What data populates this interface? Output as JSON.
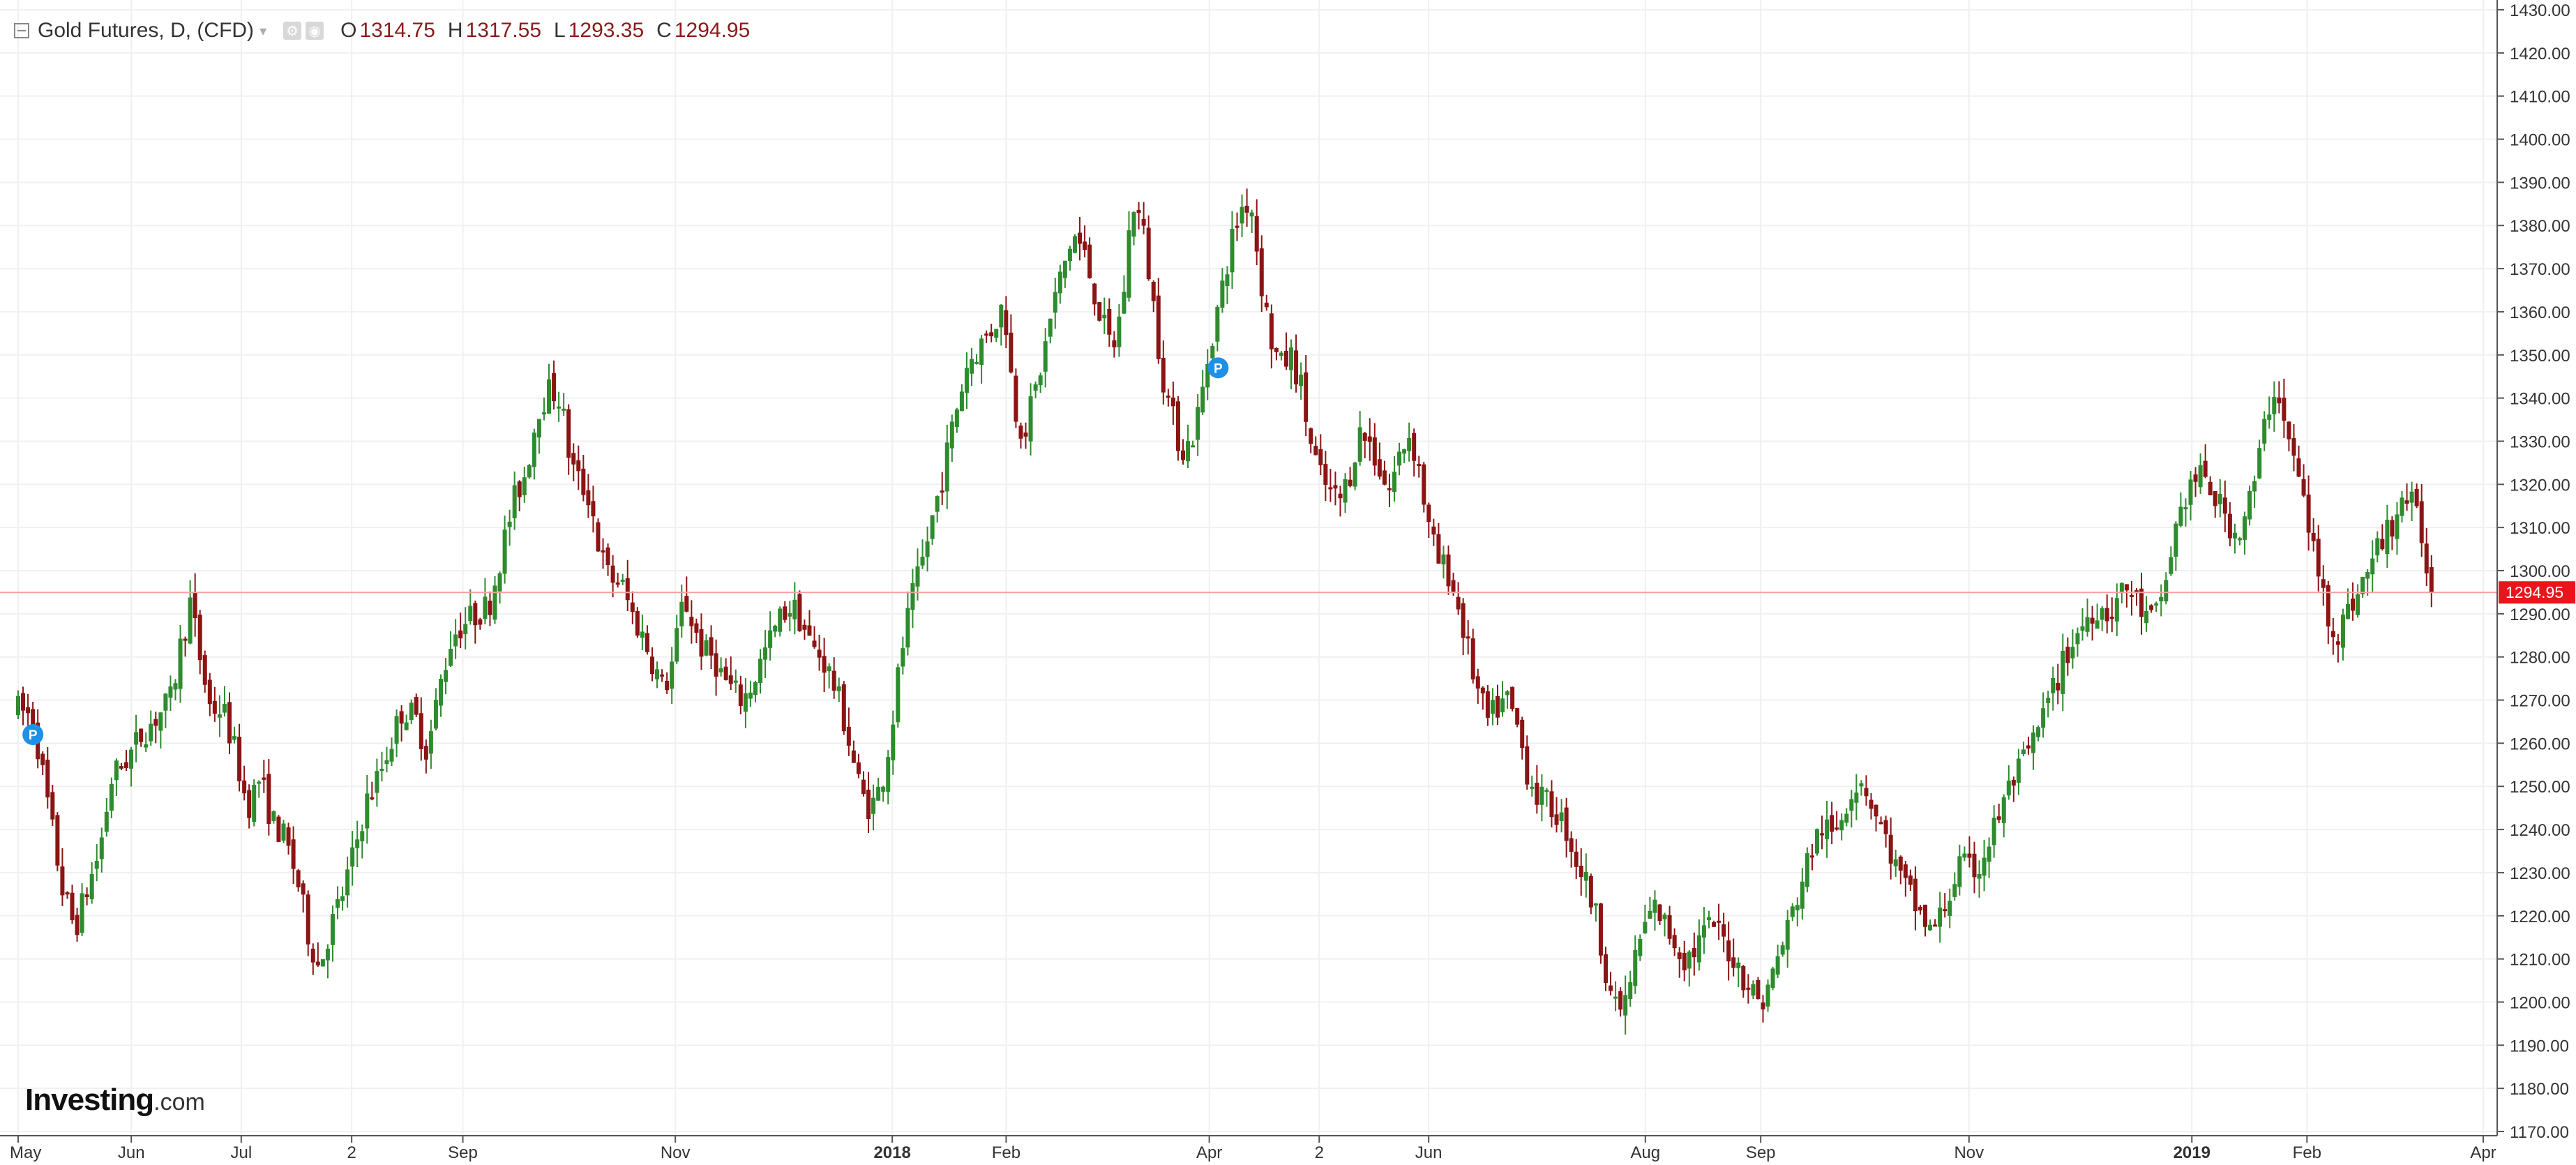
{
  "legend": {
    "title": "Gold Futures, D, (CFD)",
    "open_label": "O",
    "open": "1314.75",
    "high_label": "H",
    "high": "1317.55",
    "low_label": "L",
    "low": "1293.35",
    "close_label": "C",
    "close": "1294.95",
    "icons": [
      "collapse-icon",
      "caret-down-icon",
      "settings-icon",
      "eye-icon"
    ]
  },
  "branding": {
    "name": "Investing",
    "suffix": ".com"
  },
  "colors": {
    "up": "#2e8b2e",
    "down": "#8b1414",
    "grid": "#f0f0f0",
    "axis": "#555555",
    "price_line": "#f5a0a0",
    "price_label_bg": "#e8151b",
    "marker": "#1e90e6"
  },
  "chart_data": {
    "type": "candlestick",
    "ylim": [
      1170,
      1430
    ],
    "y_ticks": [
      "1170.00",
      "1180.00",
      "1190.00",
      "1200.00",
      "1210.00",
      "1220.00",
      "1230.00",
      "1240.00",
      "1250.00",
      "1260.00",
      "1270.00",
      "1280.00",
      "1290.00",
      "1300.00",
      "1310.00",
      "1320.00",
      "1330.00",
      "1340.00",
      "1350.00",
      "1360.00",
      "1370.00",
      "1380.00",
      "1390.00",
      "1400.00",
      "1410.00",
      "1420.00",
      "1430.00"
    ],
    "x_ticks": [
      {
        "label": "May",
        "x": 0,
        "bold": false
      },
      {
        "label": "Jun",
        "x": 0.0459,
        "bold": false
      },
      {
        "label": "Jul",
        "x": 0.0905,
        "bold": false
      },
      {
        "label": "2",
        "x": 0.1353,
        "bold": false
      },
      {
        "label": "Sep",
        "x": 0.1804,
        "bold": false
      },
      {
        "label": "Nov",
        "x": 0.2666,
        "bold": false
      },
      {
        "label": "2018",
        "x": 0.3546,
        "bold": true
      },
      {
        "label": "Feb",
        "x": 0.4008,
        "bold": false
      },
      {
        "label": "Apr",
        "x": 0.4832,
        "bold": false
      },
      {
        "label": "2",
        "x": 0.5278,
        "bold": false
      },
      {
        "label": "Jun",
        "x": 0.5722,
        "bold": false
      },
      {
        "label": "Aug",
        "x": 0.6601,
        "bold": false
      },
      {
        "label": "Sep",
        "x": 0.7069,
        "bold": false
      },
      {
        "label": "Nov",
        "x": 0.7914,
        "bold": false
      },
      {
        "label": "2019",
        "x": 0.8818,
        "bold": true
      },
      {
        "label": "Feb",
        "x": 0.9285,
        "bold": false
      },
      {
        "label": "Apr",
        "x": 1,
        "bold": false
      }
    ],
    "last_price": 1294.95,
    "last_price_label": "1294.95",
    "markers": [
      {
        "label": "P",
        "x": 0.006,
        "y": 1262
      },
      {
        "label": "P",
        "x": 0.4868,
        "y": 1347
      }
    ],
    "keypoints": [
      [
        0.0,
        1268
      ],
      [
        0.006,
        1266
      ],
      [
        0.012,
        1246
      ],
      [
        0.018,
        1226
      ],
      [
        0.023,
        1217
      ],
      [
        0.028,
        1226
      ],
      [
        0.033,
        1235
      ],
      [
        0.038,
        1252
      ],
      [
        0.045,
        1257
      ],
      [
        0.05,
        1262
      ],
      [
        0.056,
        1266
      ],
      [
        0.062,
        1270
      ],
      [
        0.066,
        1283
      ],
      [
        0.07,
        1293
      ],
      [
        0.073,
        1282
      ],
      [
        0.078,
        1268
      ],
      [
        0.083,
        1268
      ],
      [
        0.088,
        1258
      ],
      [
        0.093,
        1245
      ],
      [
        0.098,
        1252
      ],
      [
        0.103,
        1242
      ],
      [
        0.108,
        1238
      ],
      [
        0.113,
        1229
      ],
      [
        0.118,
        1215
      ],
      [
        0.122,
        1208
      ],
      [
        0.126,
        1216
      ],
      [
        0.131,
        1224
      ],
      [
        0.136,
        1234
      ],
      [
        0.141,
        1246
      ],
      [
        0.146,
        1252
      ],
      [
        0.151,
        1260
      ],
      [
        0.156,
        1268
      ],
      [
        0.161,
        1266
      ],
      [
        0.166,
        1258
      ],
      [
        0.171,
        1273
      ],
      [
        0.176,
        1285
      ],
      [
        0.181,
        1288
      ],
      [
        0.186,
        1290
      ],
      [
        0.191,
        1292
      ],
      [
        0.196,
        1304
      ],
      [
        0.201,
        1316
      ],
      [
        0.206,
        1323
      ],
      [
        0.211,
        1338
      ],
      [
        0.216,
        1342
      ],
      [
        0.22,
        1340
      ],
      [
        0.224,
        1325
      ],
      [
        0.228,
        1320
      ],
      [
        0.232,
        1317
      ],
      [
        0.236,
        1304
      ],
      [
        0.24,
        1298
      ],
      [
        0.244,
        1298
      ],
      [
        0.249,
        1290
      ],
      [
        0.254,
        1284
      ],
      [
        0.258,
        1278
      ],
      [
        0.262,
        1272
      ],
      [
        0.266,
        1280
      ],
      [
        0.27,
        1294
      ],
      [
        0.274,
        1287
      ],
      [
        0.278,
        1281
      ],
      [
        0.282,
        1280
      ],
      [
        0.286,
        1275
      ],
      [
        0.29,
        1272
      ],
      [
        0.294,
        1270
      ],
      [
        0.298,
        1274
      ],
      [
        0.302,
        1280
      ],
      [
        0.306,
        1285
      ],
      [
        0.31,
        1290
      ],
      [
        0.314,
        1292
      ],
      [
        0.318,
        1288
      ],
      [
        0.322,
        1282
      ],
      [
        0.326,
        1280
      ],
      [
        0.33,
        1275
      ],
      [
        0.334,
        1268
      ],
      [
        0.338,
        1258
      ],
      [
        0.342,
        1248
      ],
      [
        0.346,
        1245
      ],
      [
        0.35,
        1250
      ],
      [
        0.354,
        1262
      ],
      [
        0.358,
        1280
      ],
      [
        0.362,
        1292
      ],
      [
        0.366,
        1300
      ],
      [
        0.37,
        1310
      ],
      [
        0.375,
        1322
      ],
      [
        0.38,
        1336
      ],
      [
        0.385,
        1348
      ],
      [
        0.39,
        1352
      ],
      [
        0.395,
        1356
      ],
      [
        0.4,
        1362
      ],
      [
        0.404,
        1338
      ],
      [
        0.408,
        1332
      ],
      [
        0.412,
        1340
      ],
      [
        0.416,
        1350
      ],
      [
        0.42,
        1362
      ],
      [
        0.424,
        1370
      ],
      [
        0.428,
        1378
      ],
      [
        0.432,
        1374
      ],
      [
        0.436,
        1366
      ],
      [
        0.44,
        1357
      ],
      [
        0.444,
        1351
      ],
      [
        0.448,
        1362
      ],
      [
        0.452,
        1386
      ],
      [
        0.456,
        1380
      ],
      [
        0.46,
        1364
      ],
      [
        0.464,
        1346
      ],
      [
        0.468,
        1336
      ],
      [
        0.472,
        1328
      ],
      [
        0.476,
        1330
      ],
      [
        0.48,
        1340
      ],
      [
        0.484,
        1354
      ],
      [
        0.488,
        1364
      ],
      [
        0.492,
        1376
      ],
      [
        0.496,
        1384
      ],
      [
        0.5,
        1386
      ],
      [
        0.504,
        1368
      ],
      [
        0.508,
        1354
      ],
      [
        0.512,
        1347
      ],
      [
        0.516,
        1350
      ],
      [
        0.52,
        1344
      ],
      [
        0.524,
        1330
      ],
      [
        0.528,
        1322
      ],
      [
        0.532,
        1318
      ],
      [
        0.536,
        1316
      ],
      [
        0.54,
        1322
      ],
      [
        0.544,
        1332
      ],
      [
        0.548,
        1330
      ],
      [
        0.552,
        1324
      ],
      [
        0.556,
        1318
      ],
      [
        0.56,
        1326
      ],
      [
        0.564,
        1332
      ],
      [
        0.568,
        1325
      ],
      [
        0.572,
        1310
      ],
      [
        0.576,
        1302
      ],
      [
        0.58,
        1300
      ],
      [
        0.584,
        1292
      ],
      [
        0.588,
        1282
      ],
      [
        0.592,
        1272
      ],
      [
        0.596,
        1265
      ],
      [
        0.6,
        1268
      ],
      [
        0.604,
        1270
      ],
      [
        0.608,
        1264
      ],
      [
        0.612,
        1254
      ],
      [
        0.616,
        1248
      ],
      [
        0.62,
        1246
      ],
      [
        0.624,
        1244
      ],
      [
        0.628,
        1240
      ],
      [
        0.632,
        1233
      ],
      [
        0.636,
        1228
      ],
      [
        0.64,
        1220
      ],
      [
        0.644,
        1208
      ],
      [
        0.648,
        1198
      ],
      [
        0.652,
        1200
      ],
      [
        0.656,
        1210
      ],
      [
        0.66,
        1218
      ],
      [
        0.664,
        1222
      ],
      [
        0.668,
        1218
      ],
      [
        0.672,
        1214
      ],
      [
        0.676,
        1210
      ],
      [
        0.68,
        1212
      ],
      [
        0.684,
        1216
      ],
      [
        0.688,
        1218
      ],
      [
        0.692,
        1214
      ],
      [
        0.696,
        1210
      ],
      [
        0.7,
        1206
      ],
      [
        0.704,
        1202
      ],
      [
        0.708,
        1200
      ],
      [
        0.712,
        1207
      ],
      [
        0.716,
        1214
      ],
      [
        0.72,
        1221
      ],
      [
        0.724,
        1229
      ],
      [
        0.728,
        1236
      ],
      [
        0.732,
        1241
      ],
      [
        0.736,
        1238
      ],
      [
        0.74,
        1244
      ],
      [
        0.744,
        1250
      ],
      [
        0.748,
        1252
      ],
      [
        0.752,
        1246
      ],
      [
        0.756,
        1240
      ],
      [
        0.76,
        1234
      ],
      [
        0.764,
        1228
      ],
      [
        0.768,
        1224
      ],
      [
        0.772,
        1220
      ],
      [
        0.776,
        1216
      ],
      [
        0.78,
        1220
      ],
      [
        0.784,
        1226
      ],
      [
        0.788,
        1232
      ],
      [
        0.792,
        1230
      ],
      [
        0.796,
        1232
      ],
      [
        0.8,
        1238
      ],
      [
        0.804,
        1244
      ],
      [
        0.808,
        1250
      ],
      [
        0.812,
        1254
      ],
      [
        0.816,
        1258
      ],
      [
        0.82,
        1264
      ],
      [
        0.824,
        1270
      ],
      [
        0.828,
        1276
      ],
      [
        0.832,
        1282
      ],
      [
        0.836,
        1286
      ],
      [
        0.84,
        1290
      ],
      [
        0.844,
        1292
      ],
      [
        0.848,
        1290
      ],
      [
        0.852,
        1294
      ],
      [
        0.856,
        1296
      ],
      [
        0.86,
        1292
      ],
      [
        0.864,
        1288
      ],
      [
        0.868,
        1290
      ],
      [
        0.872,
        1300
      ],
      [
        0.876,
        1312
      ],
      [
        0.88,
        1318
      ],
      [
        0.884,
        1322
      ],
      [
        0.888,
        1320
      ],
      [
        0.892,
        1316
      ],
      [
        0.896,
        1312
      ],
      [
        0.9,
        1308
      ],
      [
        0.904,
        1314
      ],
      [
        0.908,
        1322
      ],
      [
        0.912,
        1336
      ],
      [
        0.916,
        1344
      ],
      [
        0.92,
        1332
      ],
      [
        0.924,
        1324
      ],
      [
        0.928,
        1314
      ],
      [
        0.932,
        1302
      ],
      [
        0.936,
        1292
      ],
      [
        0.94,
        1285
      ],
      [
        0.944,
        1289
      ],
      [
        0.948,
        1294
      ],
      [
        0.952,
        1298
      ],
      [
        0.956,
        1304
      ],
      [
        0.96,
        1308
      ],
      [
        0.964,
        1312
      ],
      [
        0.968,
        1318
      ],
      [
        0.972,
        1314
      ],
      [
        0.976,
        1306
      ],
      [
        0.979,
        1295
      ]
    ]
  }
}
